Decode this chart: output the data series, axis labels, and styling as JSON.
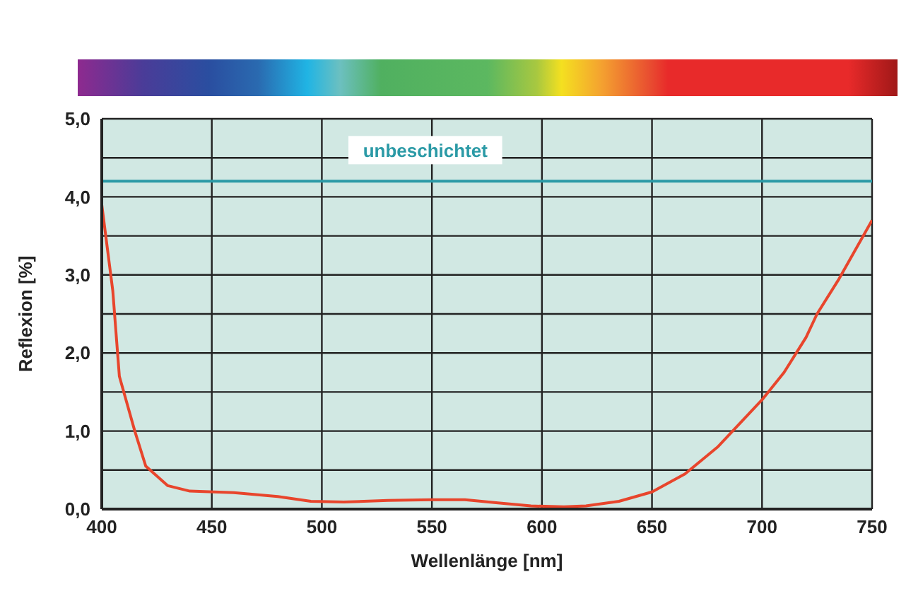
{
  "chart_data": {
    "type": "line",
    "xlabel": "Wellenlänge [nm]",
    "ylabel": "Reflexion [%]",
    "x": [
      400,
      405,
      408,
      415,
      420,
      430,
      440,
      460,
      480,
      495,
      510,
      530,
      550,
      565,
      580,
      595,
      610,
      620,
      635,
      650,
      665,
      680,
      700,
      710,
      720,
      725,
      735,
      750
    ],
    "series": [
      {
        "color": "#e8452c",
        "values": [
          3.9,
          2.8,
          1.7,
          1.0,
          0.55,
          0.3,
          0.23,
          0.21,
          0.16,
          0.1,
          0.09,
          0.11,
          0.12,
          0.12,
          0.08,
          0.04,
          0.03,
          0.04,
          0.1,
          0.22,
          0.45,
          0.8,
          1.4,
          1.75,
          2.2,
          2.5,
          2.95,
          3.7
        ]
      }
    ],
    "xlim": [
      400,
      750
    ],
    "xticks": [
      400,
      450,
      500,
      550,
      600,
      650,
      700,
      750
    ],
    "ylim": [
      0,
      5
    ],
    "yticks": [
      {
        "value": 0,
        "label": "0,0"
      },
      {
        "value": 0.5,
        "label": null
      },
      {
        "value": 1,
        "label": "1,0"
      },
      {
        "value": 1.5,
        "label": null
      },
      {
        "value": 2,
        "label": "2,0"
      },
      {
        "value": 2.5,
        "label": null
      },
      {
        "value": 3,
        "label": "3,0"
      },
      {
        "value": 3.5,
        "label": null
      },
      {
        "value": 4,
        "label": "4,0"
      },
      {
        "value": 4.5,
        "label": null
      },
      {
        "value": 5,
        "label": "5,0"
      }
    ],
    "ref_lines": [
      {
        "axis": "y",
        "value": 4.2,
        "label": "unbeschichtet",
        "color": "#2b9aa6"
      }
    ],
    "grid": true,
    "marker": "none",
    "line_style": "solid"
  }
}
